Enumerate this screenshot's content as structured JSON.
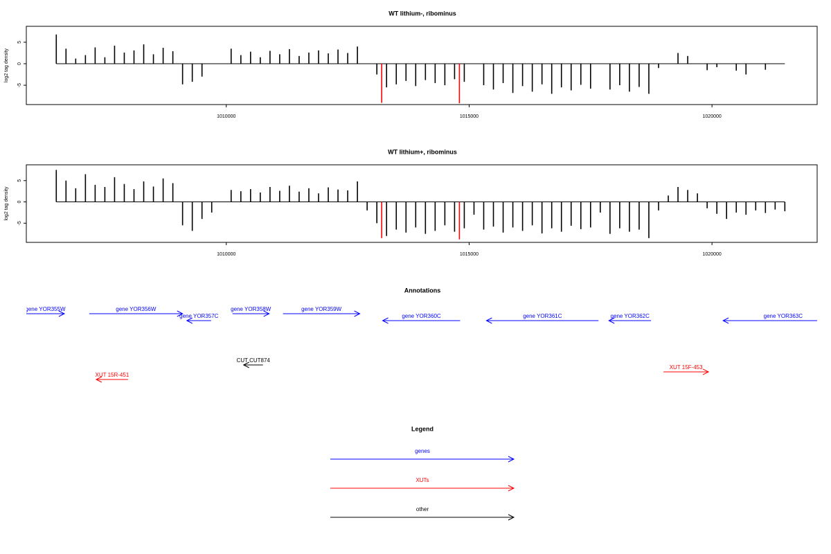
{
  "chart_data": [
    {
      "type": "bar",
      "title": "WT lithium-, ribominus",
      "ylabel": "log2 tag density",
      "xlim": [
        1005883,
        1022165
      ],
      "xticks": [
        1010000,
        1015000,
        1020000
      ],
      "ylim": [
        -9.5,
        8.7
      ],
      "yticks": [
        5,
        0,
        -5
      ],
      "series": [
        {
          "color": "#000000",
          "x": [
            1006500,
            1006700,
            1006900,
            1007100,
            1007300,
            1007500,
            1007700,
            1007900,
            1008100,
            1008300,
            1008500,
            1008700,
            1008900,
            1009100,
            1009300,
            1009500,
            1009700,
            1009900,
            1010100,
            1010300,
            1010500,
            1010700,
            1010900,
            1011100,
            1011300,
            1011500,
            1011700,
            1011900,
            1012100,
            1012300,
            1012500,
            1012700,
            1012900,
            1013100,
            1013300,
            1013500,
            1013700,
            1013900,
            1014100,
            1014300,
            1014500,
            1014700,
            1014900,
            1015100,
            1015300,
            1015500,
            1015700,
            1015900,
            1016100,
            1016300,
            1016500,
            1016700,
            1016900,
            1017100,
            1017300,
            1017500,
            1017700,
            1017900,
            1018100,
            1018300,
            1018500,
            1018700,
            1018900,
            1019100,
            1019300,
            1019500,
            1019700,
            1019900,
            1020100,
            1020300,
            1020500,
            1020700,
            1020900,
            1021100,
            1021300,
            1021500
          ],
          "values": [
            6.8,
            3.5,
            1.2,
            2.0,
            3.8,
            1.5,
            4.2,
            2.6,
            3.1,
            4.5,
            2.2,
            3.7,
            2.9,
            -4.8,
            -4.2,
            -3.0,
            null,
            null,
            3.5,
            2.0,
            2.8,
            1.5,
            3.0,
            2.2,
            3.4,
            1.8,
            2.6,
            3.1,
            2.4,
            3.3,
            2.5,
            4.0,
            null,
            -2.5,
            -5.5,
            -4.8,
            -4.0,
            -5.2,
            -3.8,
            -4.5,
            -5.0,
            -3.6,
            -4.2,
            null,
            -5.0,
            -6.0,
            -4.5,
            -6.8,
            -5.2,
            -6.5,
            -4.8,
            -7.0,
            -5.5,
            -6.2,
            -4.9,
            -5.8,
            null,
            -6.0,
            -5.0,
            -6.5,
            -5.4,
            -7.0,
            -1.0,
            null,
            2.5,
            1.8,
            null,
            -1.5,
            -0.8,
            null,
            -1.6,
            -2.5,
            null,
            -1.4,
            null,
            null
          ]
        },
        {
          "color": "#ff0000",
          "x": [
            1013200,
            1014800
          ],
          "values": [
            -9.1,
            -9.2
          ]
        }
      ]
    },
    {
      "type": "bar",
      "title": "WT lithium+, ribominus",
      "ylabel": "log2 tag density",
      "xlim": [
        1005883,
        1022165
      ],
      "xticks": [
        1010000,
        1015000,
        1020000
      ],
      "ylim": [
        -9.5,
        8.7
      ],
      "yticks": [
        5,
        0,
        -5
      ],
      "series": [
        {
          "color": "#000000",
          "x": [
            1006500,
            1006700,
            1006900,
            1007100,
            1007300,
            1007500,
            1007700,
            1007900,
            1008100,
            1008300,
            1008500,
            1008700,
            1008900,
            1009100,
            1009300,
            1009500,
            1009700,
            1009900,
            1010100,
            1010300,
            1010500,
            1010700,
            1010900,
            1011100,
            1011300,
            1011500,
            1011700,
            1011900,
            1012100,
            1012300,
            1012500,
            1012700,
            1012900,
            1013100,
            1013300,
            1013500,
            1013700,
            1013900,
            1014100,
            1014300,
            1014500,
            1014700,
            1014900,
            1015100,
            1015300,
            1015500,
            1015700,
            1015900,
            1016100,
            1016300,
            1016500,
            1016700,
            1016900,
            1017100,
            1017300,
            1017500,
            1017700,
            1017900,
            1018100,
            1018300,
            1018500,
            1018700,
            1018900,
            1019100,
            1019300,
            1019500,
            1019700,
            1019900,
            1020100,
            1020300,
            1020500,
            1020700,
            1020900,
            1021100,
            1021300,
            1021500
          ],
          "values": [
            7.5,
            5.0,
            3.2,
            6.5,
            4.0,
            3.5,
            5.8,
            4.2,
            3.0,
            4.8,
            3.6,
            5.5,
            4.4,
            -5.5,
            -6.8,
            -4.0,
            -2.5,
            null,
            2.8,
            2.5,
            3.0,
            2.2,
            3.5,
            2.6,
            3.8,
            2.4,
            3.2,
            2.0,
            3.4,
            2.9,
            2.7,
            4.8,
            -2.0,
            -5.0,
            -8.0,
            -6.5,
            -7.2,
            -6.0,
            -7.5,
            -6.8,
            -5.5,
            -7.0,
            -6.2,
            -3.0,
            -6.5,
            -5.8,
            -7.2,
            -6.0,
            -6.8,
            -5.5,
            -7.4,
            -6.2,
            -7.0,
            -5.6,
            -6.4,
            -6.0,
            -2.5,
            -7.5,
            -6.2,
            -7.0,
            -6.5,
            -8.5,
            -2.0,
            1.5,
            3.5,
            2.8,
            2.0,
            -1.5,
            -2.8,
            -4.0,
            -2.5,
            -3.0,
            -2.0,
            -2.6,
            -1.8,
            -2.2
          ]
        },
        {
          "color": "#ff0000",
          "x": [
            1013200,
            1014800
          ],
          "values": [
            -8.5,
            -8.8
          ]
        }
      ]
    },
    {
      "type": "annotation",
      "title": "Annotations",
      "xlim": [
        1005883,
        1022165
      ],
      "features": [
        {
          "label": "gene YOR355W",
          "color": "#0000ff",
          "strand": "+",
          "start": 1005500,
          "end": 1006666
        },
        {
          "label": "gene YOR356W",
          "color": "#0000ff",
          "strand": "+",
          "start": 1007179,
          "end": 1009102
        },
        {
          "label": "gene YOR357C",
          "color": "#0000ff",
          "strand": "-",
          "start": 1009188,
          "end": 1009687
        },
        {
          "label": "gene YOR358W",
          "color": "#0000ff",
          "strand": "+",
          "start": 1010128,
          "end": 1010883
        },
        {
          "label": "gene YOR359W",
          "color": "#0000ff",
          "strand": "+",
          "start": 1011168,
          "end": 1012749
        },
        {
          "label": "gene YOR360C",
          "color": "#0000ff",
          "strand": "-",
          "start": 1013219,
          "end": 1014815
        },
        {
          "label": "gene YOR361C",
          "color": "#0000ff",
          "strand": "-",
          "start": 1015356,
          "end": 1017664
        },
        {
          "label": "gene YOR362C",
          "color": "#0000ff",
          "strand": "-",
          "start": 1017877,
          "end": 1018746
        },
        {
          "label": "gene YOR363C",
          "color": "#0000ff",
          "strand": "-",
          "start": 1020228,
          "end": 1022700
        },
        {
          "label": "CUT CUT874",
          "color": "#000000",
          "strand": "-",
          "start": 1010356,
          "end": 1010755
        },
        {
          "label": "XUT 15R-451",
          "color": "#ff0000",
          "strand": "-",
          "start": 1007322,
          "end": 1007977
        },
        {
          "label": "XUT 15F-453",
          "color": "#ff0000",
          "strand": "+",
          "start": 1019002,
          "end": 1019928
        }
      ],
      "legend": {
        "title": "Legend",
        "items": [
          {
            "name": "genes",
            "color": "#0000ff"
          },
          {
            "name": "XUTs",
            "color": "#ff0000"
          },
          {
            "name": "other",
            "color": "#000000"
          }
        ]
      }
    }
  ]
}
